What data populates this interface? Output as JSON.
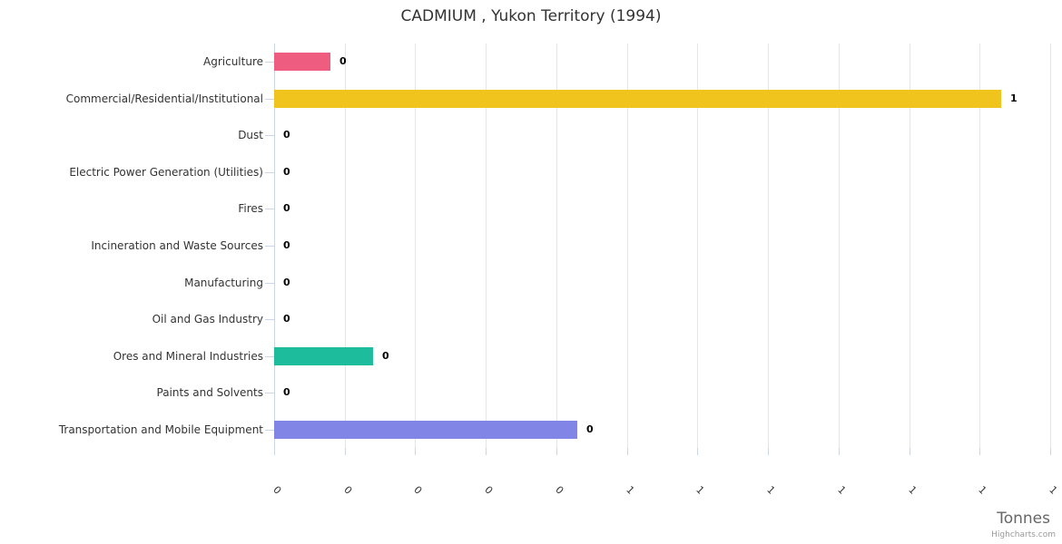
{
  "credits": "Highcharts.com",
  "chart_data": {
    "type": "bar",
    "orientation": "horizontal",
    "title": "CADMIUM , Yukon Territory (1994)",
    "xlabel": "Tonnes",
    "categories": [
      "Agriculture",
      "Commercial/Residential/Institutional",
      "Dust",
      "Electric Power Generation (Utilities)",
      "Fires",
      "Incineration and Waste Sources",
      "Manufacturing",
      "Oil and Gas Industry",
      "Ores and Mineral Industries",
      "Paints and Solvents",
      "Transportation and Mobile Equipment"
    ],
    "values": [
      0.08,
      1.03,
      0,
      0,
      0,
      0,
      0,
      0,
      0.14,
      0,
      0.43
    ],
    "value_labels": [
      "0",
      "1",
      "0",
      "0",
      "0",
      "0",
      "0",
      "0",
      "0",
      "0",
      "0"
    ],
    "bar_colors": [
      "#ee5d7f",
      "#f0c41c",
      null,
      null,
      null,
      null,
      null,
      null,
      "#1dbc9c",
      null,
      "#8186e6"
    ],
    "xlim": [
      0,
      1.1
    ],
    "x_ticks": [
      0,
      0.1,
      0.2,
      0.3,
      0.4,
      0.5,
      0.6,
      0.7,
      0.8,
      0.9,
      1.0,
      1.1
    ],
    "x_tick_labels": [
      "0",
      "0",
      "0",
      "0",
      "0",
      "1",
      "1",
      "1",
      "1",
      "1",
      "1",
      "1"
    ],
    "x_tick_label_rotation": 45,
    "grid": true,
    "legend": false,
    "colors": {
      "grid": "#e6e6e6",
      "axis_line": "#ccd6eb",
      "tick": "#ccd6eb",
      "title_text": "#333333",
      "category_text": "#333333",
      "tick_label_text": "#333333",
      "data_label_text": "#000000",
      "axis_title_text": "#666666",
      "credit_text": "#999999",
      "background": "#ffffff"
    }
  }
}
